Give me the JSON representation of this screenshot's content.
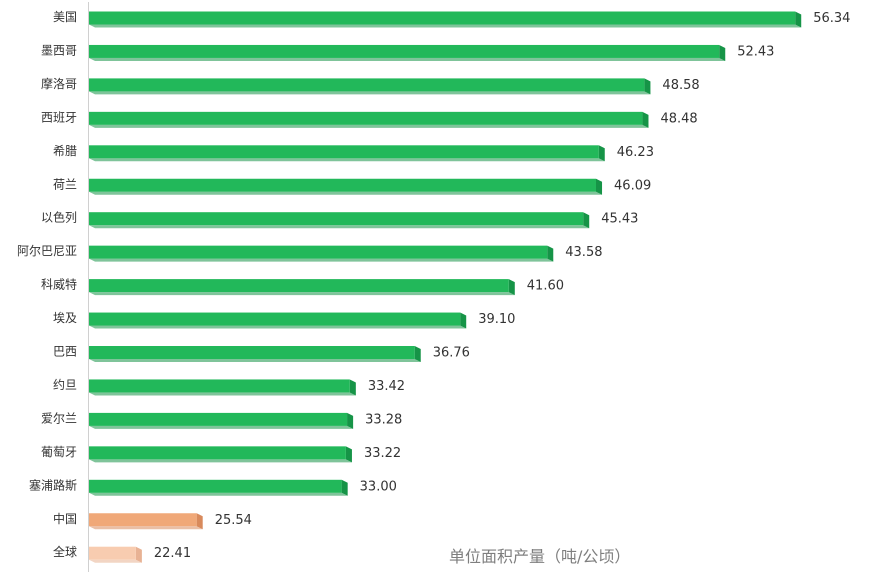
{
  "chart_data": {
    "type": "bar",
    "orientation": "horizontal",
    "categories": [
      "美国",
      "墨西哥",
      "摩洛哥",
      "西班牙",
      "希腊",
      "荷兰",
      "以色列",
      "阿尔巴尼亚",
      "科威特",
      "埃及",
      "巴西",
      "约旦",
      "爱尔兰",
      "葡萄牙",
      "塞浦路斯",
      "中国",
      "全球"
    ],
    "values": [
      56.34,
      52.43,
      48.58,
      48.48,
      46.23,
      46.09,
      45.43,
      43.58,
      41.6,
      39.1,
      36.76,
      33.42,
      33.28,
      33.22,
      33.0,
      25.54,
      22.41
    ],
    "value_labels": [
      "56.34",
      "52.43",
      "48.58",
      "48.48",
      "46.23",
      "46.09",
      "45.43",
      "43.58",
      "41.60",
      "39.10",
      "36.76",
      "33.42",
      "33.28",
      "33.22",
      "33.00",
      "25.54",
      "22.41"
    ],
    "bar_colors": [
      "#22b85a",
      "#22b85a",
      "#22b85a",
      "#22b85a",
      "#22b85a",
      "#22b85a",
      "#22b85a",
      "#22b85a",
      "#22b85a",
      "#22b85a",
      "#22b85a",
      "#22b85a",
      "#22b85a",
      "#22b85a",
      "#22b85a",
      "#f0a878",
      "#f8ccb0"
    ],
    "side_colors": [
      "#169447",
      "#169447",
      "#169447",
      "#169447",
      "#169447",
      "#169447",
      "#169447",
      "#169447",
      "#169447",
      "#169447",
      "#169447",
      "#169447",
      "#169447",
      "#169447",
      "#169447",
      "#d88a5c",
      "#e8b294"
    ],
    "xlim": [
      20,
      57
    ],
    "grid": false,
    "legend": "none",
    "annotation": "单位面积产量（吨/公顷）"
  }
}
